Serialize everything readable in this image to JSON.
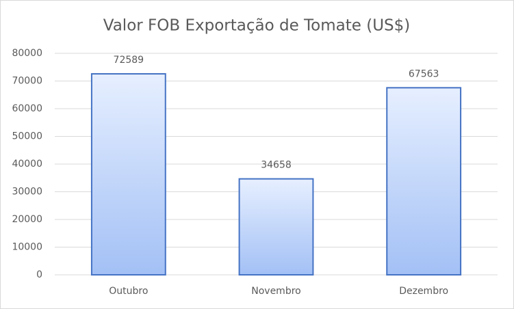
{
  "chart_data": {
    "type": "bar",
    "title": "Valor FOB Exportação de Tomate (US$)",
    "categories": [
      "Outubro",
      "Novembro",
      "Dezembro"
    ],
    "values": [
      72589,
      34658,
      67563
    ],
    "color": "#4472c4",
    "ylim": [
      0,
      80000
    ],
    "yticks": [
      0,
      10000,
      20000,
      30000,
      40000,
      50000,
      60000,
      70000,
      80000
    ],
    "grid": true,
    "data_labels": true
  }
}
